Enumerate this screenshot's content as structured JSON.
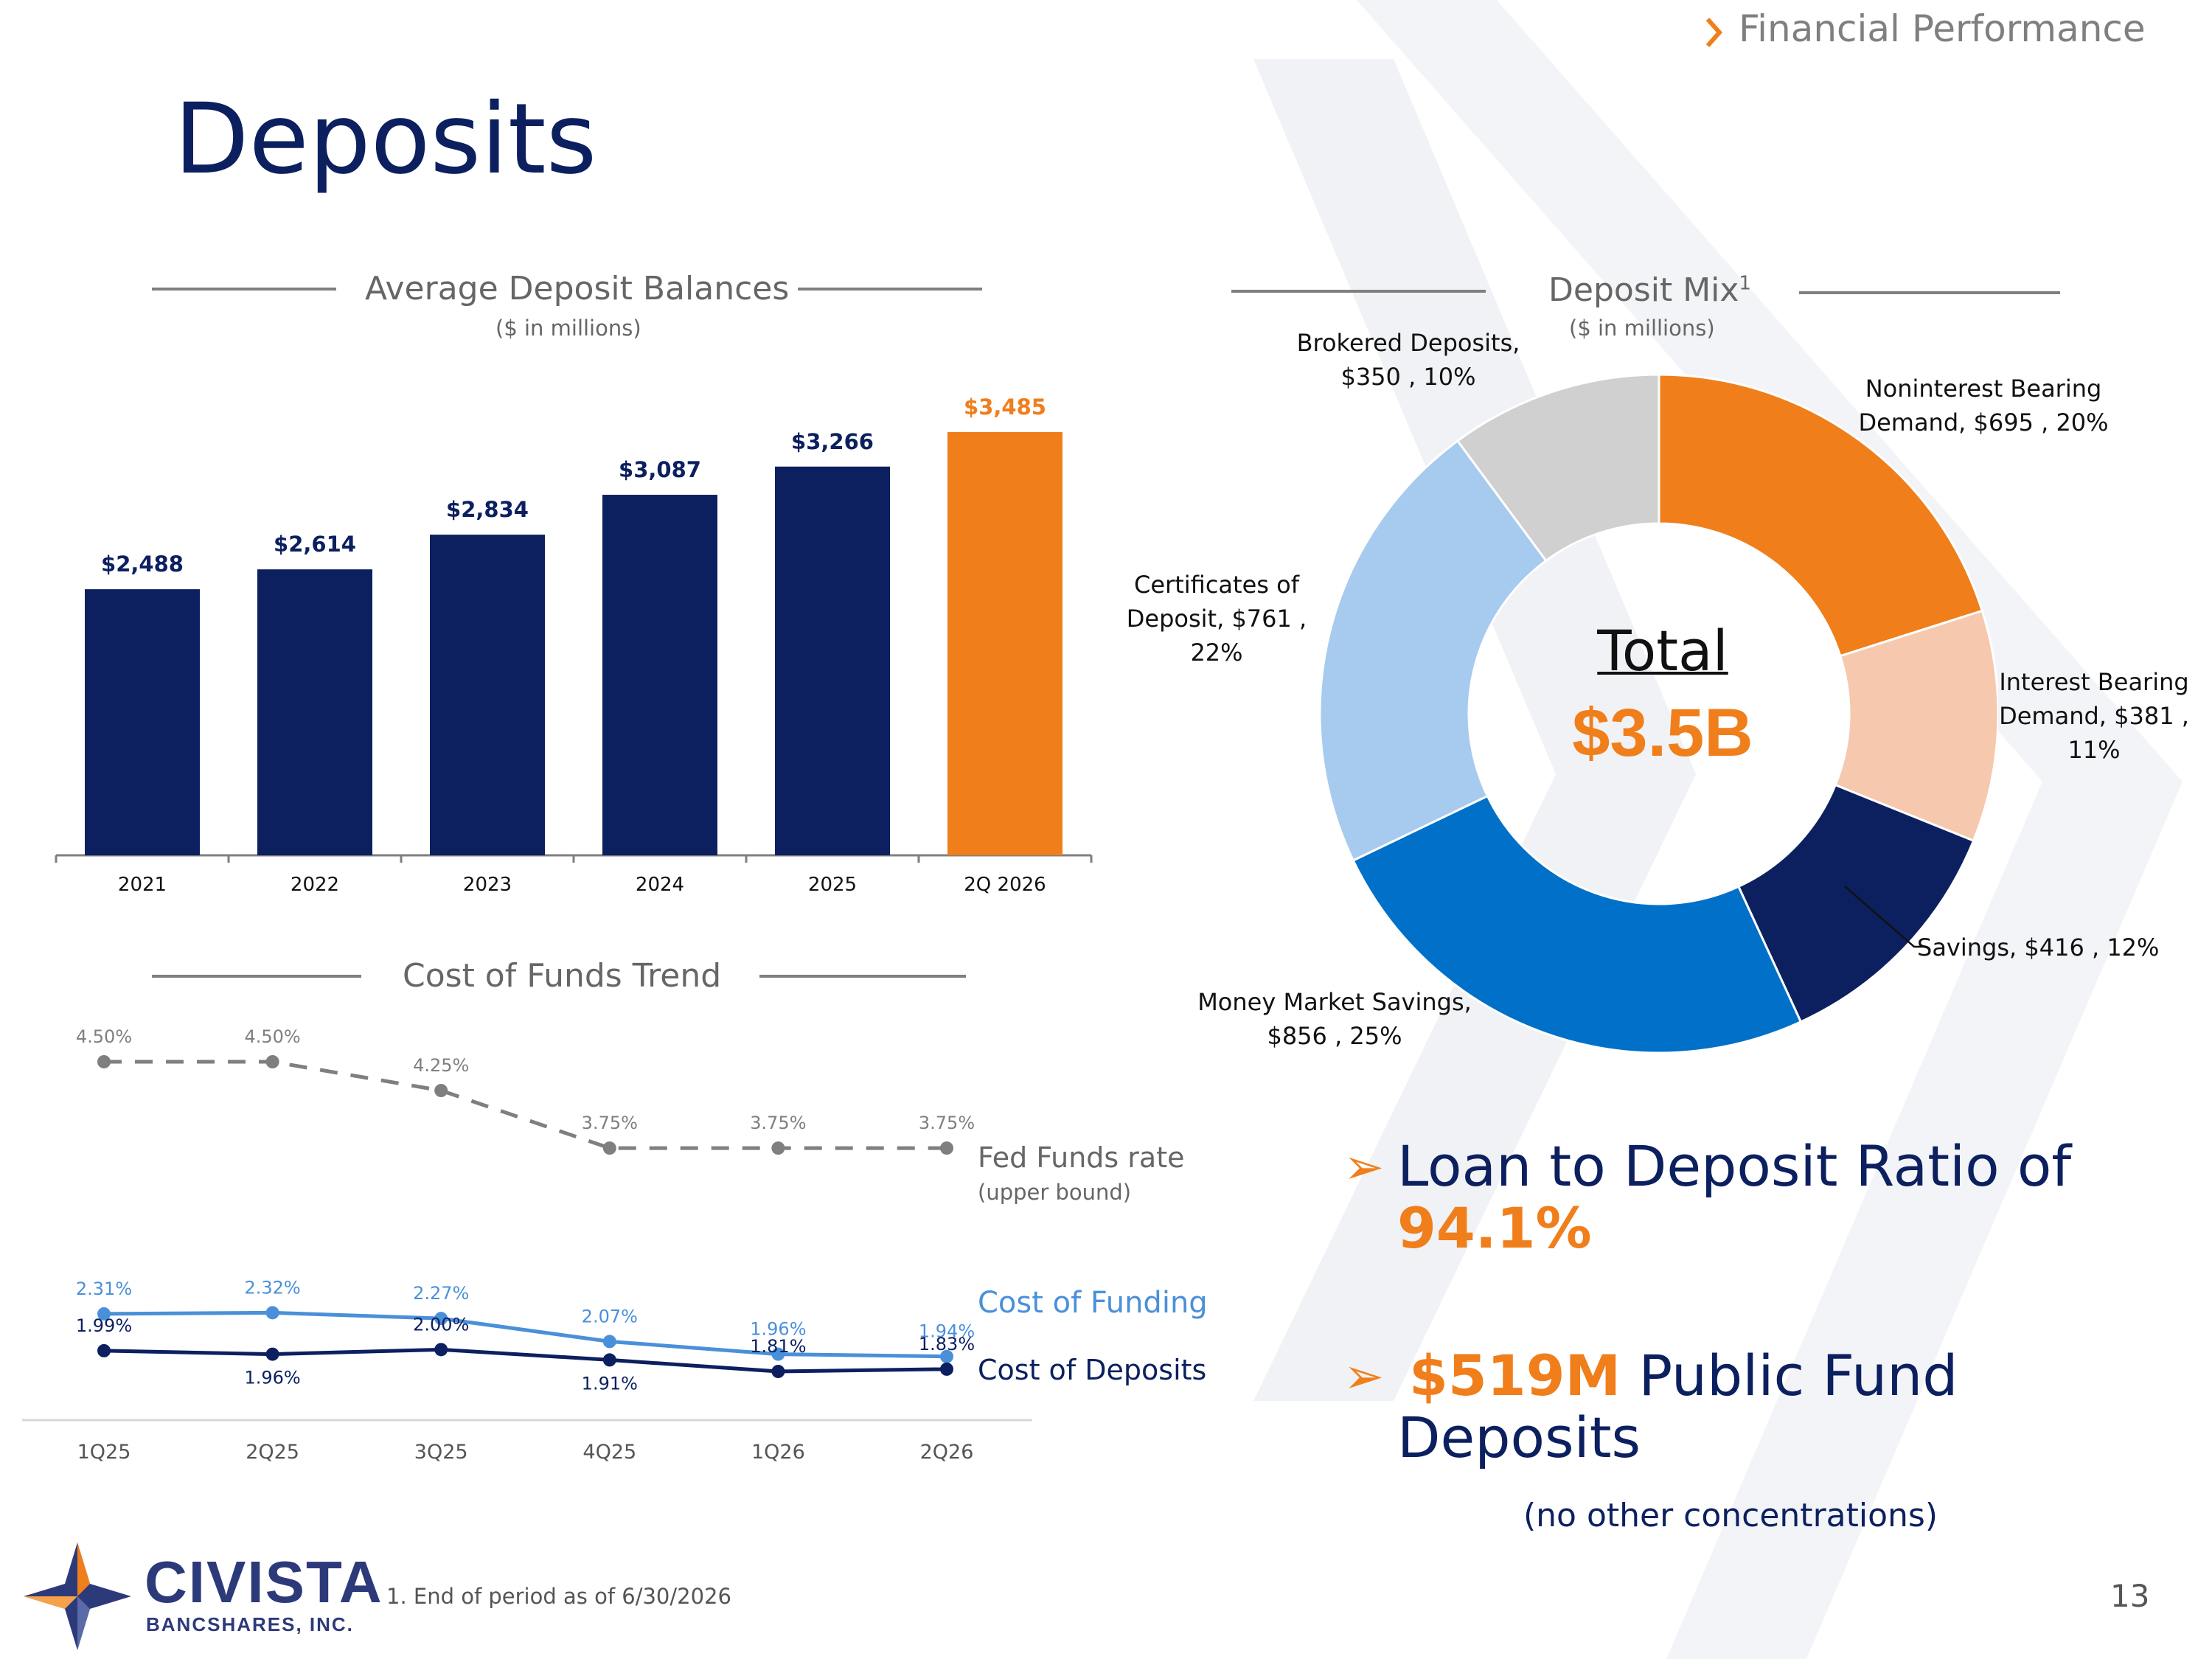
{
  "header": {
    "section_label": "Financial Performance",
    "page_title": "Deposits",
    "page_number": "13"
  },
  "colors": {
    "navy": "#0c2060",
    "orange": "#f07e1b",
    "light_orange": "#f6c8ae",
    "light_blue": "#a7cbee",
    "medium_blue": "#0070c8",
    "gray": "#d0d0d0",
    "funding_blue": "#4a90d9",
    "fed_gray": "#7f7f7f"
  },
  "bar_chart": {
    "title": "Average Deposit Balances",
    "subtitle": "($ in millions)"
  },
  "line_chart": {
    "title": "Cost of Funds Trend",
    "fed_label": "Fed Funds rate",
    "fed_sub": "(upper bound)",
    "funding_label": "Cost of Funding",
    "deposits_label": "Cost of Deposits"
  },
  "donut_chart": {
    "title": "Deposit Mix",
    "title_sup": "1",
    "subtitle": "($ in millions)",
    "center_label": "Total",
    "center_value": "$3.5B",
    "labels": {
      "brokered": [
        "Brokered Deposits,",
        "$350 , 10%"
      ],
      "noninterest": [
        "Noninterest Bearing",
        "Demand,  $695 , 20%"
      ],
      "interest": [
        "Interest Bearing",
        "Demand,  $381 ,",
        "11%"
      ],
      "savings": [
        "Savings,  $416 , 12%"
      ],
      "money_market": [
        "Money Market Savings,",
        "$856 , 25%"
      ],
      "certificates": [
        "Certificates of",
        "Deposit,  $761 ,",
        "22%"
      ]
    }
  },
  "bullets": {
    "ltd_text": "Loan to Deposit Ratio of",
    "ltd_value": "94.1%",
    "public_value": "$519M",
    "public_text_1": "Public Fund",
    "public_text_2": "Deposits",
    "note": "(no other concentrations)",
    "arrow_glyph": "➢"
  },
  "footer": {
    "logo_name": "CIVISTA",
    "logo_sub": "BANCSHARES, INC.",
    "footnote": "1. End of period as of 6/30/2026"
  },
  "chart_data": [
    {
      "type": "bar",
      "title": "Average Deposit Balances",
      "subtitle": "($ in millions)",
      "categories": [
        "2021",
        "2022",
        "2023",
        "2024",
        "2025",
        "2Q 2026"
      ],
      "values": [
        2488,
        2614,
        2834,
        3087,
        3266,
        3485
      ],
      "value_labels": [
        "$2,488",
        "$2,614",
        "$2,834",
        "$3,087",
        "$3,266",
        "$3,485"
      ],
      "highlight_index": 5,
      "ylim": [
        800,
        3700
      ],
      "grid": false
    },
    {
      "type": "line",
      "title": "Cost of Funds Trend",
      "categories": [
        "1Q25",
        "2Q25",
        "3Q25",
        "4Q25",
        "1Q26",
        "2Q26"
      ],
      "ylim": [
        1.5,
        4.8
      ],
      "grid": false,
      "series": [
        {
          "name": "Fed Funds rate",
          "style": "dashed",
          "values": [
            4.5,
            4.5,
            4.25,
            3.75,
            3.75,
            3.75
          ],
          "labels": [
            "4.50%",
            "4.50%",
            "4.25%",
            "3.75%",
            "3.75%",
            "3.75%"
          ]
        },
        {
          "name": "Cost of Funding",
          "style": "solid",
          "values": [
            2.31,
            2.32,
            2.27,
            2.07,
            1.96,
            1.94
          ],
          "labels": [
            "2.31%",
            "2.32%",
            "2.27%",
            "2.07%",
            "1.96%",
            "1.94%"
          ]
        },
        {
          "name": "Cost of Deposits",
          "style": "solid",
          "values": [
            1.99,
            1.96,
            2.0,
            1.91,
            1.81,
            1.83
          ],
          "labels": [
            "1.99%",
            "1.96%",
            "2.00%",
            "1.91%",
            "1.81%",
            "1.83%"
          ]
        }
      ]
    },
    {
      "type": "pie",
      "title": "Deposit Mix",
      "subtitle": "($ in millions)",
      "donut": true,
      "slices": [
        {
          "key": "noninterest",
          "value": 695,
          "percent": 20
        },
        {
          "key": "interest",
          "value": 381,
          "percent": 11
        },
        {
          "key": "savings",
          "value": 416,
          "percent": 12
        },
        {
          "key": "money_market",
          "value": 856,
          "percent": 25
        },
        {
          "key": "certificates",
          "value": 761,
          "percent": 22
        },
        {
          "key": "brokered",
          "value": 350,
          "percent": 10
        }
      ]
    }
  ]
}
